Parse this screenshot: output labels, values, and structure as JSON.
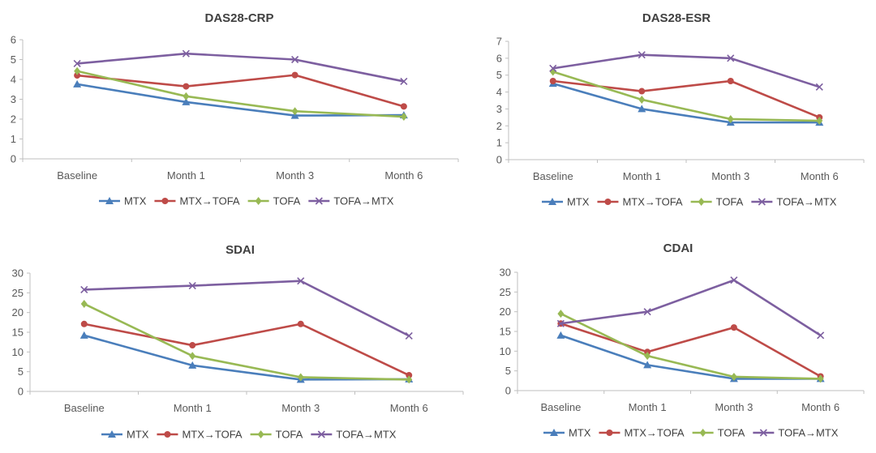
{
  "colors": {
    "MTX": "#4a7ebb",
    "MTX→TOFA": "#be4b48",
    "TOFA": "#98b954",
    "TOFA→MTX": "#7d5fa0",
    "axis": "#bfbfbf",
    "text": "#595959"
  },
  "markers": {
    "MTX": "triangle",
    "MTX→TOFA": "circle",
    "TOFA": "diamond",
    "TOFA→MTX": "x"
  },
  "chart_data": [
    {
      "type": "line",
      "title": "DAS28-CRP",
      "categories": [
        "Baseline",
        "Month 1",
        "Month 3",
        "Month 6"
      ],
      "ylim": [
        0,
        6
      ],
      "yticks": [
        "0",
        "1",
        "2",
        "3",
        "4",
        "5",
        "6"
      ],
      "legend_position": "bottom",
      "series": [
        {
          "name": "MTX",
          "values": [
            3.76,
            2.86,
            2.18,
            2.2
          ]
        },
        {
          "name": "MTX→TOFA",
          "values": [
            4.2,
            3.65,
            4.22,
            2.64
          ]
        },
        {
          "name": "TOFA",
          "values": [
            4.42,
            3.15,
            2.4,
            2.12
          ]
        },
        {
          "name": "TOFA→MTX",
          "values": [
            4.8,
            5.3,
            5.0,
            3.9
          ]
        }
      ]
    },
    {
      "type": "line",
      "title": "DAS28-ESR",
      "categories": [
        "Baseline",
        "Month 1",
        "Month 3",
        "Month 6"
      ],
      "ylim": [
        0,
        7
      ],
      "yticks": [
        "0",
        "1",
        "2",
        "3",
        "4",
        "5",
        "6",
        "7"
      ],
      "legend_position": "bottom",
      "series": [
        {
          "name": "MTX",
          "values": [
            4.5,
            3.0,
            2.2,
            2.2
          ]
        },
        {
          "name": "MTX→TOFA",
          "values": [
            4.65,
            4.05,
            4.65,
            2.5
          ]
        },
        {
          "name": "TOFA",
          "values": [
            5.2,
            3.55,
            2.4,
            2.3
          ]
        },
        {
          "name": "TOFA→MTX",
          "values": [
            5.4,
            6.2,
            6.0,
            4.3
          ]
        }
      ]
    },
    {
      "type": "line",
      "title": "SDAI",
      "categories": [
        "Baseline",
        "Month 1",
        "Month 3",
        "Month 6"
      ],
      "ylim": [
        0,
        30
      ],
      "yticks": [
        "0",
        "5",
        "10",
        "15",
        "20",
        "25",
        "30"
      ],
      "legend_position": "bottom",
      "series": [
        {
          "name": "MTX",
          "values": [
            14.2,
            6.6,
            3.0,
            3.1
          ]
        },
        {
          "name": "MTX→TOFA",
          "values": [
            17.1,
            11.7,
            17.1,
            4.1
          ]
        },
        {
          "name": "TOFA",
          "values": [
            22.2,
            9.0,
            3.6,
            3.0
          ]
        },
        {
          "name": "TOFA→MTX",
          "values": [
            25.8,
            26.8,
            28.0,
            14.1
          ]
        }
      ]
    },
    {
      "type": "line",
      "title": "CDAI",
      "categories": [
        "Baseline",
        "Month 1",
        "Month 3",
        "Month 6"
      ],
      "ylim": [
        0,
        30
      ],
      "yticks": [
        "0",
        "5",
        "10",
        "15",
        "20",
        "25",
        "30"
      ],
      "legend_position": "bottom",
      "series": [
        {
          "name": "MTX",
          "values": [
            14.0,
            6.5,
            3.0,
            3.0
          ]
        },
        {
          "name": "MTX→TOFA",
          "values": [
            17.0,
            9.8,
            16.0,
            3.6
          ]
        },
        {
          "name": "TOFA",
          "values": [
            19.5,
            8.8,
            3.5,
            3.0
          ]
        },
        {
          "name": "TOFA→MTX",
          "values": [
            17.0,
            20.0,
            28.0,
            14.0
          ]
        }
      ]
    }
  ]
}
